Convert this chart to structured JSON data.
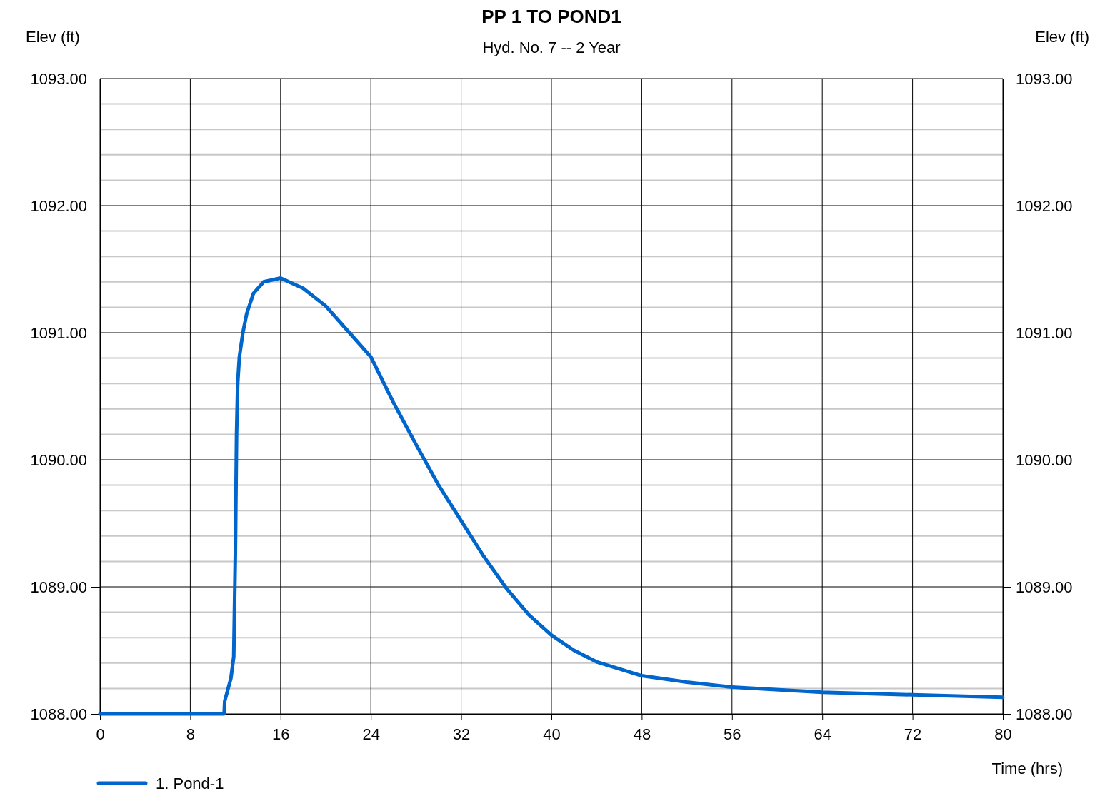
{
  "chart_data": {
    "type": "line",
    "title": "PP 1 TO POND1",
    "subtitle": "Hyd. No. 7 -- 2 Year",
    "xlabel": "Time (hrs)",
    "ylabel": "Elev (ft)",
    "y2label": "Elev (ft)",
    "x": [
      0,
      11,
      11.05,
      11.6,
      11.85,
      12,
      12.1,
      12.2,
      12.35,
      12.66,
      13,
      13.6,
      14.5,
      16,
      18,
      20,
      22,
      24,
      26,
      28,
      30,
      32,
      34,
      36,
      38,
      40,
      42,
      44,
      48,
      52,
      56,
      64,
      72,
      80
    ],
    "series": [
      {
        "name": "1. Pond-1",
        "color": "#0066cc",
        "values": [
          1088,
          1088,
          1088.1,
          1088.28,
          1088.45,
          1089.3,
          1090.2,
          1090.6,
          1090.81,
          1091.0,
          1091.15,
          1091.31,
          1091.4,
          1091.43,
          1091.35,
          1091.21,
          1091.01,
          1090.81,
          1090.45,
          1090.12,
          1089.8,
          1089.52,
          1089.24,
          1088.99,
          1088.78,
          1088.62,
          1088.5,
          1088.41,
          1088.3,
          1088.25,
          1088.21,
          1088.17,
          1088.15,
          1088.13
        ]
      }
    ],
    "xlim": [
      0,
      80
    ],
    "xticks": [
      0,
      8,
      16,
      24,
      32,
      40,
      48,
      56,
      64,
      72,
      80
    ],
    "ylim": [
      1088,
      1093
    ],
    "yticks": [
      {
        "value": 1088,
        "label": "1088.00"
      },
      {
        "value": 1088.2,
        "label": null
      },
      {
        "value": 1088.4,
        "label": null
      },
      {
        "value": 1088.6,
        "label": null
      },
      {
        "value": 1088.8,
        "label": null
      },
      {
        "value": 1089,
        "label": "1089.00"
      },
      {
        "value": 1089.2,
        "label": null
      },
      {
        "value": 1089.4,
        "label": null
      },
      {
        "value": 1089.6,
        "label": null
      },
      {
        "value": 1089.8,
        "label": null
      },
      {
        "value": 1090,
        "label": "1090.00"
      },
      {
        "value": 1090.2,
        "label": null
      },
      {
        "value": 1090.4,
        "label": null
      },
      {
        "value": 1090.6,
        "label": null
      },
      {
        "value": 1090.8,
        "label": null
      },
      {
        "value": 1091,
        "label": "1091.00"
      },
      {
        "value": 1091.2,
        "label": null
      },
      {
        "value": 1091.4,
        "label": null
      },
      {
        "value": 1091.6,
        "label": null
      },
      {
        "value": 1091.8,
        "label": null
      },
      {
        "value": 1092,
        "label": "1092.00"
      },
      {
        "value": 1092.2,
        "label": null
      },
      {
        "value": 1092.4,
        "label": null
      },
      {
        "value": 1092.6,
        "label": null
      },
      {
        "value": 1092.8,
        "label": null
      },
      {
        "value": 1093,
        "label": "1093.00"
      }
    ],
    "y2lim": [
      1088,
      1093
    ],
    "y2ticks": [
      {
        "value": 1088,
        "label": "1088.00"
      },
      {
        "value": 1089,
        "label": "1089.00"
      },
      {
        "value": 1090,
        "label": "1090.00"
      },
      {
        "value": 1091,
        "label": "1091.00"
      },
      {
        "value": 1092,
        "label": "1092.00"
      },
      {
        "value": 1093,
        "label": "1093.00"
      }
    ],
    "grid": true,
    "legend": "bottom left",
    "line_style": "solid",
    "marker": "none"
  }
}
